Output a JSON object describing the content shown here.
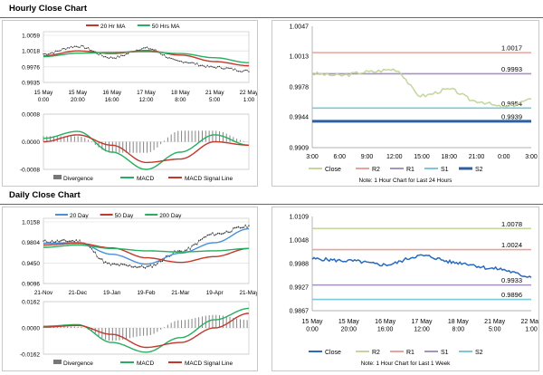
{
  "hourly": {
    "title": "Hourly Close Chart",
    "price": {
      "legend": [
        "20 Hr MA",
        "50 Hrs MA"
      ],
      "legend_colors": [
        "#c0392b",
        "#27ae60"
      ],
      "y_ticks": [
        "1.0059",
        "1.0018",
        "0.9976",
        "0.9935"
      ],
      "x_ticks": [
        "15 May\n0:00",
        "15 May\n20:00",
        "16 May\n16:00",
        "17 May\n12:00",
        "18 May\n8:00",
        "21 May\n5:00",
        "22 May\n1:00"
      ]
    },
    "macd": {
      "y_ticks": [
        "0.0008",
        "0.0000",
        "-0.0008"
      ],
      "legend": [
        "Divergence",
        "MACD",
        "MACD Signal Line"
      ]
    },
    "right": {
      "y_ticks": [
        "1.0047",
        "1.0013",
        "0.9978",
        "0.9944",
        "0.9909"
      ],
      "x_ticks": [
        "3:00",
        "6:00",
        "9:00",
        "12:00",
        "15:00",
        "18:00",
        "21:00",
        "0:00",
        "3:00"
      ],
      "levels": [
        {
          "name": "R2",
          "label": "1.0017",
          "color": "#e8a49c"
        },
        {
          "name": "R1",
          "label": "0.9993",
          "color": "#a693c0"
        },
        {
          "name": "S1",
          "label": "0.9954",
          "color": "#7ec7d6"
        },
        {
          "name": "S2",
          "label": "0.9939",
          "color": "#2f5f9e"
        }
      ],
      "legend": [
        "Close",
        "R2",
        "R1",
        "S1",
        "S2"
      ],
      "close_color": "#c3d69b",
      "note": "Note: 1 Hour Chart for Last 24 Hours"
    }
  },
  "daily": {
    "title": "Daily Close Chart",
    "price": {
      "legend": [
        "20 Day",
        "50 Day",
        "200 Day"
      ],
      "legend_colors": [
        "#4a90d9",
        "#c0392b",
        "#27ae60"
      ],
      "y_ticks": [
        "1.0158",
        "0.9804",
        "0.9450",
        "0.9096"
      ],
      "x_ticks": [
        "21-Nov",
        "21-Dec",
        "19-Jan",
        "19-Feb",
        "21-Mar",
        "19-Apr",
        "21-May"
      ]
    },
    "macd": {
      "y_ticks": [
        "0.0162",
        "0.0000",
        "-0.0162"
      ],
      "legend": [
        "Divergence",
        "MACD",
        "MACD Signal Line"
      ]
    },
    "right": {
      "y_ticks": [
        "1.0109",
        "1.0048",
        "0.9988",
        "0.9927",
        "0.9867"
      ],
      "x_ticks": [
        "15 May\n0:00",
        "15 May\n20:00",
        "16 May\n16:00",
        "17 May\n12:00",
        "18 May\n8:00",
        "21 May\n5:00",
        "22 May\n1:00"
      ],
      "levels": [
        {
          "name": "R2",
          "label": "1.0078",
          "color": "#c3d69b"
        },
        {
          "name": "R1",
          "label": "1.0024",
          "color": "#e8a49c"
        },
        {
          "name": "S1",
          "label": "0.9933",
          "color": "#a693c0"
        },
        {
          "name": "S2",
          "label": "0.9896",
          "color": "#7ec7d6"
        }
      ],
      "legend": [
        "Close",
        "R2",
        "R1",
        "S1",
        "S2"
      ],
      "close_color": "#2a6bbf",
      "note": "Note: 1 Hour Chart for Last 1 Week"
    }
  },
  "chart_data": [
    {
      "type": "line",
      "title": "Hourly Close Chart",
      "x": [
        "15 May 0:00",
        "15 May 20:00",
        "16 May 16:00",
        "17 May 12:00",
        "18 May 8:00",
        "21 May 5:00",
        "22 May 1:00"
      ],
      "ylim": [
        0.9935,
        1.0059
      ],
      "series": [
        {
          "name": "20 Hr MA",
          "values": [
            1.0005,
            1.0018,
            1.0011,
            1.0019,
            1.0007,
            0.999,
            0.9979
          ]
        },
        {
          "name": "50 Hrs MA",
          "values": [
            1.0003,
            1.0012,
            1.0014,
            1.0016,
            1.0011,
            1.0,
            0.9987
          ]
        }
      ],
      "close": [
        1.001,
        1.003,
        1.0,
        1.0025,
        0.999,
        0.9975,
        0.9965
      ]
    },
    {
      "type": "line",
      "title": "Hourly MACD",
      "ylim": [
        -0.0008,
        0.0008
      ],
      "series": [
        {
          "name": "MACD",
          "values": [
            0.0001,
            0.0003,
            -0.0003,
            -0.0008,
            -0.0003,
            0.0002,
            -0.0001
          ]
        },
        {
          "name": "MACD Signal Line",
          "values": [
            0.0,
            0.0002,
            -0.0001,
            -0.0006,
            -0.0005,
            0.0,
            -0.0001
          ]
        }
      ]
    },
    {
      "type": "line",
      "title": "Hourly Close (Last 24 Hours)",
      "x": [
        "3:00",
        "6:00",
        "9:00",
        "12:00",
        "15:00",
        "18:00",
        "21:00",
        "0:00",
        "3:00"
      ],
      "ylim": [
        0.9909,
        1.0047
      ],
      "series": [
        {
          "name": "Close",
          "values": [
            0.9993,
            0.9991,
            0.9995,
            0.9998,
            0.9968,
            0.9975,
            0.9962,
            0.9955,
            0.9963
          ]
        }
      ],
      "levels": {
        "R2": 1.0017,
        "R1": 0.9993,
        "S1": 0.9954,
        "S2": 0.9939
      }
    },
    {
      "type": "line",
      "title": "Daily Close Chart",
      "x": [
        "21-Nov",
        "21-Dec",
        "19-Jan",
        "19-Feb",
        "21-Mar",
        "19-Apr",
        "21-May"
      ],
      "ylim": [
        0.9096,
        1.0158
      ],
      "series": [
        {
          "name": "20 Day",
          "values": [
            0.979,
            0.98,
            0.96,
            0.943,
            0.962,
            0.98,
            1.004
          ]
        },
        {
          "name": "50 Day",
          "values": [
            0.976,
            0.979,
            0.971,
            0.954,
            0.946,
            0.956,
            0.97
          ]
        },
        {
          "name": "200 Day",
          "values": [
            0.972,
            0.976,
            0.97,
            0.966,
            0.964,
            0.966,
            0.97
          ]
        }
      ],
      "close": [
        0.982,
        0.983,
        0.942,
        0.938,
        0.965,
        0.995,
        1.008
      ]
    },
    {
      "type": "line",
      "title": "Daily MACD",
      "ylim": [
        -0.0162,
        0.0162
      ],
      "series": [
        {
          "name": "MACD",
          "values": [
            0.001,
            0.002,
            -0.009,
            -0.015,
            -0.006,
            0.005,
            0.012
          ]
        },
        {
          "name": "MACD Signal Line",
          "values": [
            0.0005,
            0.0015,
            -0.004,
            -0.012,
            -0.009,
            0.0,
            0.009
          ]
        }
      ]
    },
    {
      "type": "line",
      "title": "Hourly Close (Last 1 Week)",
      "x": [
        "15 May 0:00",
        "15 May 20:00",
        "16 May 16:00",
        "17 May 12:00",
        "18 May 8:00",
        "21 May 5:00",
        "22 May 1:00"
      ],
      "ylim": [
        0.9867,
        1.0109
      ],
      "series": [
        {
          "name": "Close",
          "values": [
            1.0,
            0.9995,
            0.9985,
            1.0008,
            0.999,
            0.9975,
            0.9955
          ]
        }
      ],
      "levels": {
        "R2": 1.0078,
        "R1": 1.0024,
        "S1": 0.9933,
        "S2": 0.9896
      }
    }
  ]
}
